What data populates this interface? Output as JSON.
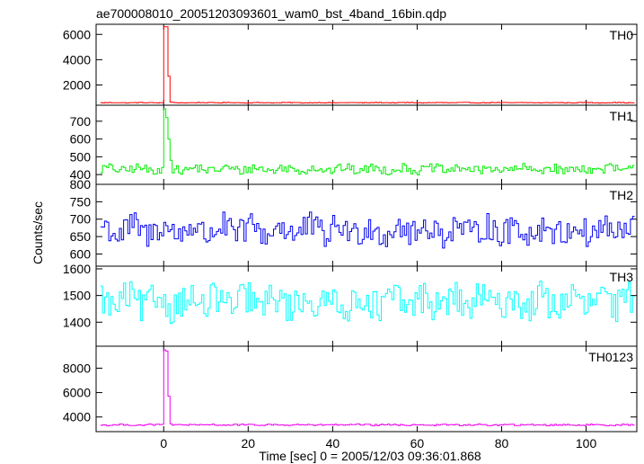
{
  "chart_data": {
    "type": "line",
    "title": "ae700008010_20051203093601_wam0_bst_4band_16bin.qdp",
    "xlabel": "Time [sec] 0 = 2005/12/03 09:36:01.868",
    "ylabel": "Counts/sec",
    "xlim": [
      -16,
      112
    ],
    "xticks": [
      0,
      20,
      40,
      60,
      80,
      100
    ],
    "x_step": 0.5,
    "panels": [
      {
        "name": "TH0",
        "color": "#ff0000",
        "ylim": [
          400,
          6800
        ],
        "yticks": [
          2000,
          4000,
          6000
        ],
        "baseline": 600,
        "noise": 25,
        "burst": [
          {
            "x": -0.5,
            "y": 600
          },
          {
            "x": 0.0,
            "y": 6600
          },
          {
            "x": 0.5,
            "y": 6600
          },
          {
            "x": 1.0,
            "y": 2700
          },
          {
            "x": 1.5,
            "y": 650
          }
        ]
      },
      {
        "name": "TH1",
        "color": "#00ee00",
        "ylim": [
          345,
          790
        ],
        "yticks": [
          400,
          500,
          600,
          700
        ],
        "baseline": 430,
        "noise": 25,
        "burst": [
          {
            "x": -0.5,
            "y": 440
          },
          {
            "x": 0.0,
            "y": 770
          },
          {
            "x": 0.5,
            "y": 720
          },
          {
            "x": 1.0,
            "y": 600
          },
          {
            "x": 1.5,
            "y": 480
          }
        ]
      },
      {
        "name": "TH2",
        "color": "#0000ee",
        "ylim": [
          565,
          800
        ],
        "yticks": [
          600,
          650,
          700,
          750,
          800
        ],
        "baseline": 668,
        "noise": 40,
        "burst": []
      },
      {
        "name": "TH3",
        "color": "#00ffff",
        "ylim": [
          1310,
          1610
        ],
        "yticks": [
          1400,
          1500,
          1600
        ],
        "baseline": 1475,
        "noise": 60,
        "burst": []
      },
      {
        "name": "TH0123",
        "color": "#ee00ee",
        "ylim": [
          2800,
          9800
        ],
        "yticks": [
          4000,
          6000,
          8000
        ],
        "baseline": 3350,
        "noise": 60,
        "burst": [
          {
            "x": -0.5,
            "y": 3400
          },
          {
            "x": 0.0,
            "y": 9500
          },
          {
            "x": 0.5,
            "y": 9400
          },
          {
            "x": 1.0,
            "y": 5700
          },
          {
            "x": 1.5,
            "y": 3450
          }
        ]
      }
    ]
  }
}
